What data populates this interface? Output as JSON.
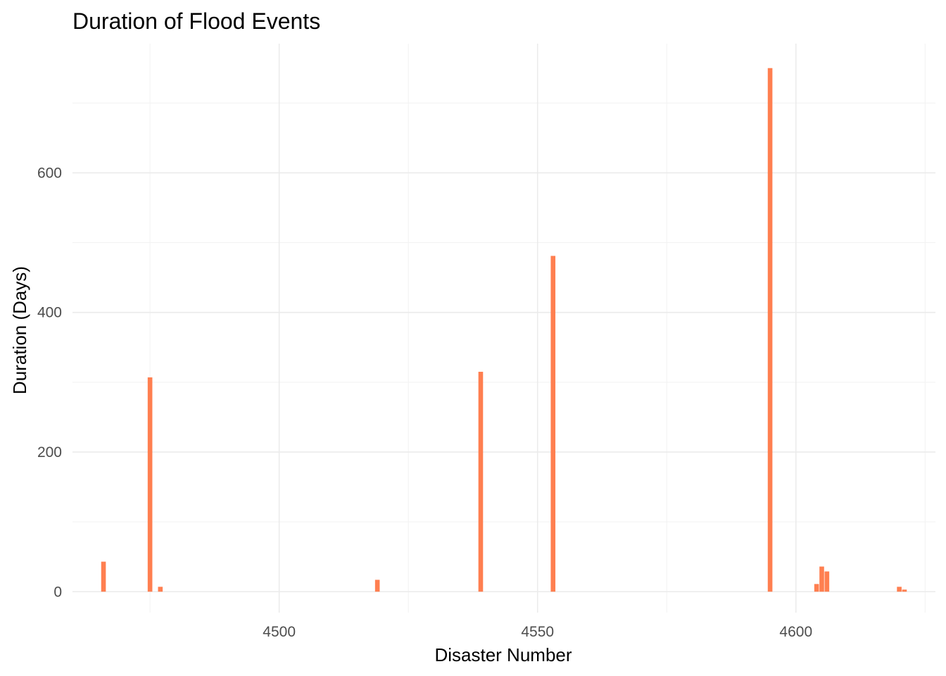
{
  "chart_data": {
    "type": "bar",
    "title": "Duration of Flood Events",
    "xlabel": "Disaster Number",
    "ylabel": "Duration (Days)",
    "bar_color": "#FF7F50",
    "grid": true,
    "xlim": [
      4460,
      4627
    ],
    "ylim": [
      -30,
      785
    ],
    "x_major_ticks": [
      4500,
      4550,
      4600
    ],
    "x_minor_ticks": [
      4475,
      4525,
      4575,
      4625
    ],
    "y_major_ticks": [
      0,
      200,
      400,
      600
    ],
    "y_minor_ticks": [
      100,
      300,
      500,
      700
    ],
    "bar_width": 1,
    "x": [
      4466,
      4475,
      4477,
      4519,
      4539,
      4553,
      4595,
      4604,
      4605,
      4606,
      4620,
      4621
    ],
    "values": [
      43,
      307,
      7,
      17,
      315,
      481,
      750,
      11,
      36,
      29,
      7,
      3
    ]
  }
}
